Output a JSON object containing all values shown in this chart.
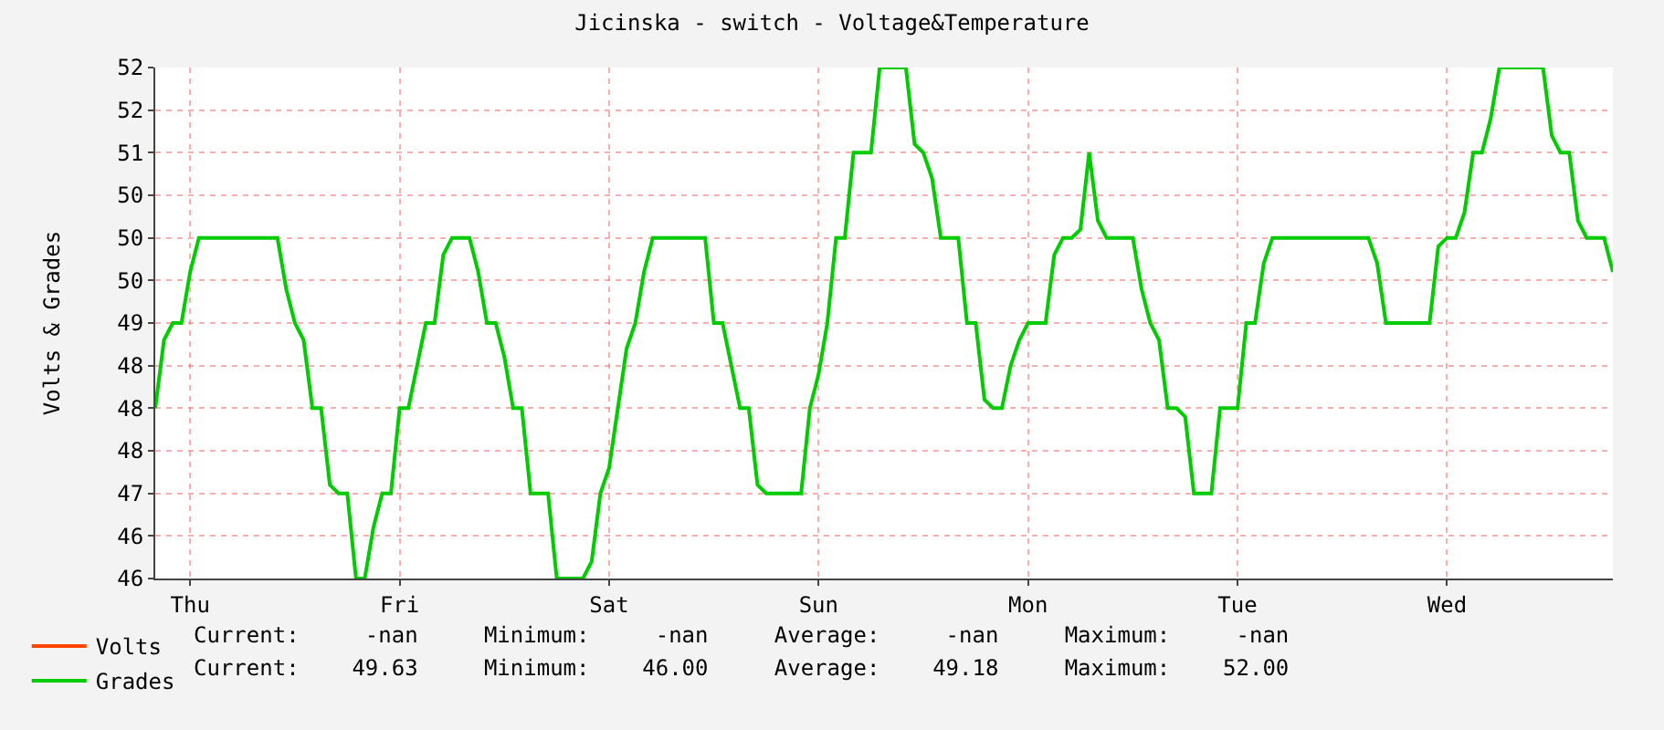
{
  "chart_data": {
    "type": "line",
    "title": "Jicinska - switch - Voltage&Temperature",
    "ylabel": "Volts & Grades",
    "categories": [
      null,
      null,
      null,
      null,
      "Thu",
      null,
      null,
      null,
      null,
      null,
      null,
      null,
      null,
      null,
      null,
      null,
      null,
      null,
      null,
      null,
      null,
      null,
      null,
      null,
      null,
      null,
      null,
      null,
      "Fri",
      null,
      null,
      null,
      null,
      null,
      null,
      null,
      null,
      null,
      null,
      null,
      null,
      null,
      null,
      null,
      null,
      null,
      null,
      null,
      null,
      null,
      null,
      null,
      "Sat",
      null,
      null,
      null,
      null,
      null,
      null,
      null,
      null,
      null,
      null,
      null,
      null,
      null,
      null,
      null,
      null,
      null,
      null,
      null,
      null,
      null,
      null,
      null,
      "Sun",
      null,
      null,
      null,
      null,
      null,
      null,
      null,
      null,
      null,
      null,
      null,
      null,
      null,
      null,
      null,
      null,
      null,
      null,
      null,
      null,
      null,
      null,
      null,
      "Mon",
      null,
      null,
      null,
      null,
      null,
      null,
      null,
      null,
      null,
      null,
      null,
      null,
      null,
      null,
      null,
      null,
      null,
      null,
      null,
      null,
      null,
      null,
      null,
      "Tue",
      null,
      null,
      null,
      null,
      null,
      null,
      null,
      null,
      null,
      null,
      null,
      null,
      null,
      null,
      null,
      null,
      null,
      null,
      null,
      null,
      null,
      null,
      null,
      "Wed",
      null,
      null,
      null,
      null,
      null,
      null,
      null,
      null,
      null,
      null,
      null,
      null,
      null,
      null,
      null,
      null,
      null,
      null,
      null
    ],
    "ylim": [
      46,
      52
    ],
    "yticks": [
      46,
      {
        "value": 46.5,
        "label": "46"
      },
      47,
      {
        "value": 47.5,
        "label": "48"
      },
      48,
      {
        "value": 48.5,
        "label": "48"
      },
      49,
      {
        "value": 49.5,
        "label": "50"
      },
      50,
      {
        "value": 50.5,
        "label": "50"
      },
      51,
      {
        "value": 51.5,
        "label": "52"
      },
      52
    ],
    "grid": true,
    "legend": "bottom left",
    "series": [
      {
        "name": "Volts",
        "color": "#ff4400",
        "values": [
          null,
          null,
          null,
          null,
          null,
          null,
          null,
          null,
          null,
          null,
          null,
          null,
          null,
          null,
          null,
          null,
          null,
          null,
          null,
          null,
          null,
          null,
          null,
          null,
          null,
          null,
          null,
          null,
          null,
          null,
          null,
          null,
          null,
          null,
          null,
          null,
          null,
          null,
          null,
          null,
          null,
          null,
          null,
          null,
          null,
          null,
          null,
          null,
          null,
          null,
          null,
          null,
          null,
          null,
          null,
          null,
          null,
          null,
          null,
          null,
          null,
          null,
          null,
          null,
          null,
          null,
          null,
          null,
          null,
          null,
          null,
          null,
          null,
          null,
          null,
          null,
          null,
          null,
          null,
          null,
          null,
          null,
          null,
          null,
          null,
          null,
          null,
          null,
          null,
          null,
          null,
          null,
          null,
          null,
          null,
          null,
          null,
          null,
          null,
          null,
          null,
          null,
          null,
          null,
          null,
          null,
          null,
          null,
          null,
          null,
          null,
          null,
          null,
          null,
          null,
          null,
          null,
          null,
          null,
          null,
          null,
          null,
          null,
          null,
          null,
          null,
          null,
          null,
          null,
          null,
          null,
          null,
          null,
          null,
          null,
          null,
          null,
          null,
          null,
          null,
          null,
          null,
          null,
          null,
          null,
          null,
          null,
          null,
          null,
          null,
          null,
          null,
          null,
          null,
          null,
          null,
          null,
          null,
          null,
          null,
          null,
          null,
          null,
          null,
          null,
          null,
          null,
          null
        ]
      },
      {
        "name": "Grades",
        "color": "#00cc00",
        "values": [
          48.0,
          48.8,
          49.0,
          49.0,
          49.6,
          50.0,
          50.0,
          50.0,
          50.0,
          50.0,
          50.0,
          50.0,
          50.0,
          50.0,
          50.0,
          49.4,
          49.0,
          48.8,
          48.0,
          48.0,
          47.1,
          47.0,
          47.0,
          46.0,
          46.0,
          46.6,
          47.0,
          47.0,
          48.0,
          48.0,
          48.5,
          49.0,
          49.0,
          49.8,
          50.0,
          50.0,
          50.0,
          49.6,
          49.0,
          49.0,
          48.6,
          48.0,
          48.0,
          47.0,
          47.0,
          47.0,
          46.0,
          46.0,
          46.0,
          46.0,
          46.2,
          47.0,
          47.3,
          48.0,
          48.7,
          49.0,
          49.6,
          50.0,
          50.0,
          50.0,
          50.0,
          50.0,
          50.0,
          50.0,
          49.0,
          49.0,
          48.5,
          48.0,
          48.0,
          47.1,
          47.0,
          47.0,
          47.0,
          47.0,
          47.0,
          48.0,
          48.4,
          49.0,
          50.0,
          50.0,
          51.0,
          51.0,
          51.0,
          52.0,
          52.0,
          52.0,
          52.0,
          51.1,
          51.0,
          50.7,
          50.0,
          50.0,
          50.0,
          49.0,
          49.0,
          48.1,
          48.0,
          48.0,
          48.5,
          48.8,
          49.0,
          49.0,
          49.0,
          49.8,
          50.0,
          50.0,
          50.1,
          51.0,
          50.2,
          50.0,
          50.0,
          50.0,
          50.0,
          49.4,
          49.0,
          48.8,
          48.0,
          48.0,
          47.9,
          47.0,
          47.0,
          47.0,
          48.0,
          48.0,
          48.0,
          49.0,
          49.0,
          49.7,
          50.0,
          50.0,
          50.0,
          50.0,
          50.0,
          50.0,
          50.0,
          50.0,
          50.0,
          50.0,
          50.0,
          50.0,
          49.7,
          49.0,
          49.0,
          49.0,
          49.0,
          49.0,
          49.0,
          49.9,
          50.0,
          50.0,
          50.3,
          51.0,
          51.0,
          51.4,
          52.0,
          52.0,
          52.0,
          52.0,
          52.0,
          52.0,
          51.2,
          51.0,
          51.0,
          50.2,
          50.0,
          50.0,
          50.0,
          49.6
        ]
      }
    ],
    "annotations": [
      "Current:     -nan     Minimum:     -nan     Average:     -nan     Maximum:     -nan",
      "Current:    49.63     Minimum:    46.00     Average:    49.18     Maximum:    52.00"
    ]
  }
}
